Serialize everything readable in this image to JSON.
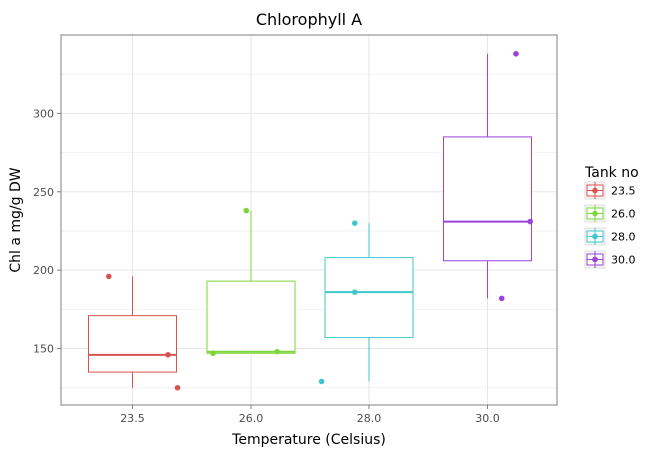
{
  "chart_data": {
    "type": "boxplot",
    "title": "Chlorophyll A",
    "xlabel": "Temperature (Celsius)",
    "ylabel": "Chl a mg/g DW",
    "categories": [
      "23.5",
      "26.0",
      "28.0",
      "30.0"
    ],
    "ylim": [
      114,
      350
    ],
    "yticks": [
      150,
      200,
      250,
      300
    ],
    "grid": true,
    "legend": {
      "title": "Tank no",
      "placement": "right",
      "entries": [
        "23.5",
        "26.0",
        "28.0",
        "30.0"
      ]
    },
    "colors": [
      "#d9534f",
      "#7fd63c",
      "#3fc8cb",
      "#9a43d9"
    ],
    "series": [
      {
        "category": "23.5",
        "box": {
          "whisker_low": 125,
          "q1": 135,
          "median": 146,
          "q3": 171,
          "whisker_high": 196
        },
        "points": [
          {
            "x_offset": -0.2,
            "y": 196
          },
          {
            "x_offset": 0.3,
            "y": 146
          },
          {
            "x_offset": 0.38,
            "y": 125
          }
        ]
      },
      {
        "category": "26.0",
        "box": {
          "whisker_low": 147,
          "q1": 147,
          "median": 148,
          "q3": 193,
          "whisker_high": 238
        },
        "points": [
          {
            "x_offset": -0.32,
            "y": 147
          },
          {
            "x_offset": -0.04,
            "y": 238
          },
          {
            "x_offset": 0.22,
            "y": 148
          }
        ]
      },
      {
        "category": "28.0",
        "box": {
          "whisker_low": 129,
          "q1": 157,
          "median": 186,
          "q3": 208,
          "whisker_high": 230
        },
        "points": [
          {
            "x_offset": -0.4,
            "y": 129
          },
          {
            "x_offset": -0.12,
            "y": 230
          },
          {
            "x_offset": -0.12,
            "y": 186
          }
        ]
      },
      {
        "category": "30.0",
        "box": {
          "whisker_low": 182,
          "q1": 206,
          "median": 231,
          "q3": 285,
          "whisker_high": 338
        },
        "points": [
          {
            "x_offset": 0.24,
            "y": 338
          },
          {
            "x_offset": 0.36,
            "y": 231
          },
          {
            "x_offset": 0.12,
            "y": 182
          }
        ]
      }
    ]
  }
}
